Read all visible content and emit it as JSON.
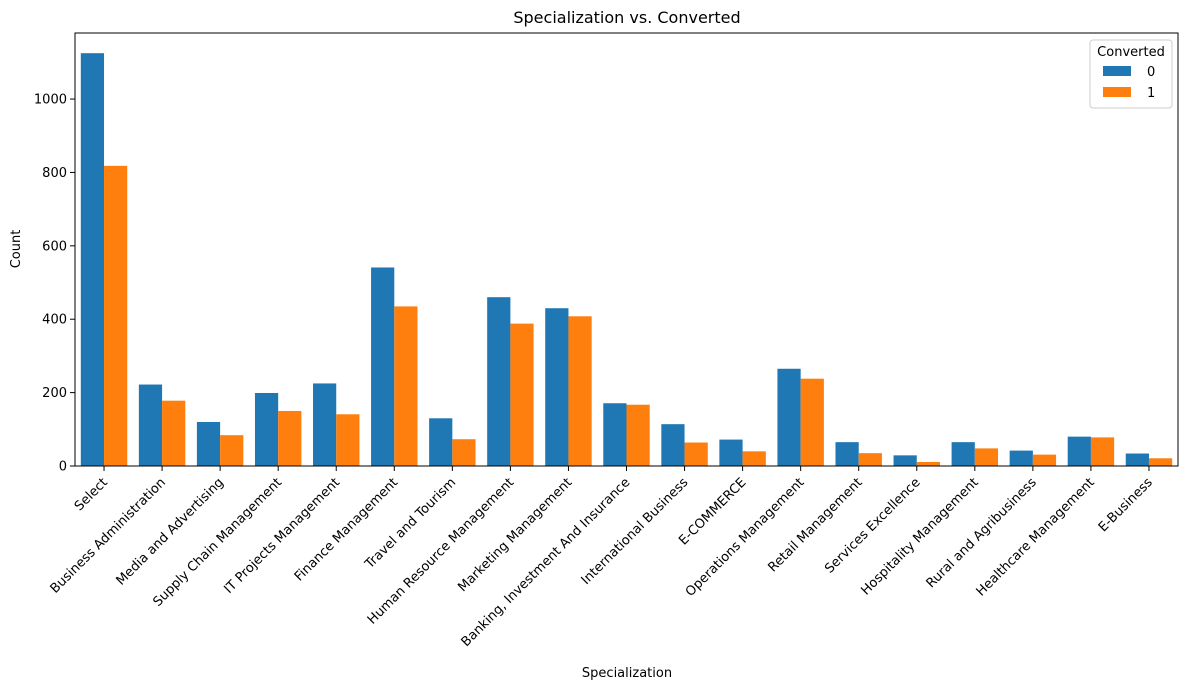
{
  "chart_data": {
    "type": "bar",
    "title": "Specialization vs. Converted",
    "xlabel": "Specialization",
    "ylabel": "Count",
    "ylim": [
      0,
      1180
    ],
    "yticks": [
      0,
      200,
      400,
      600,
      800,
      1000
    ],
    "grid": false,
    "legend": {
      "title": "Converted",
      "placement": "top-right"
    },
    "categories": [
      "Select",
      "Business Administration",
      "Media and Advertising",
      "Supply Chain Management",
      "IT Projects Management",
      "Finance Management",
      "Travel and Tourism",
      "Human Resource Management",
      "Marketing Management",
      "Banking, Investment And Insurance",
      "International Business",
      "E-COMMERCE",
      "Operations Management",
      "Retail Management",
      "Services Excellence",
      "Hospitality Management",
      "Rural and Agribusiness",
      "Healthcare Management",
      "E-Business"
    ],
    "series": [
      {
        "name": "0",
        "color": "#1f77b4",
        "values": [
          1125,
          222,
          120,
          199,
          225,
          541,
          130,
          460,
          430,
          171,
          114,
          72,
          265,
          65,
          29,
          65,
          42,
          80,
          34
        ]
      },
      {
        "name": "1",
        "color": "#ff7f0e",
        "values": [
          818,
          178,
          84,
          150,
          141,
          435,
          73,
          388,
          408,
          167,
          64,
          40,
          238,
          35,
          11,
          48,
          31,
          78,
          21
        ]
      }
    ]
  }
}
